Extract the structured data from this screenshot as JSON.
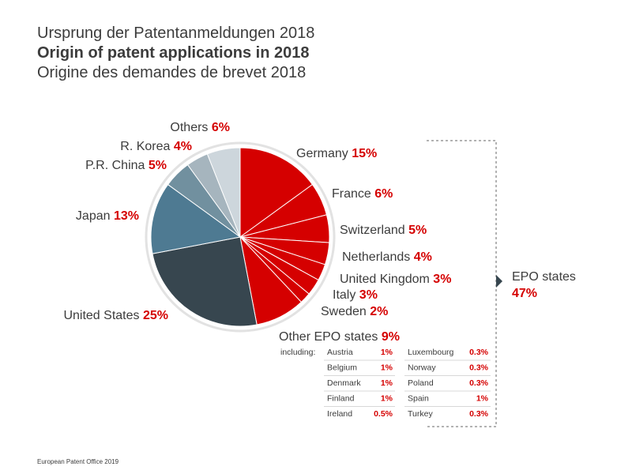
{
  "title_de": "Ursprung der Patentanmeldungen 2018",
  "title_en": "Origin of patent applications in 2018",
  "title_fr": "Origine des demandes de brevet 2018",
  "footer": "European Patent Office 2019",
  "chart_data": {
    "type": "pie",
    "categories": [
      "Germany",
      "France",
      "Switzerland",
      "Netherlands",
      "United Kingdom",
      "Italy",
      "Sweden",
      "Other EPO states",
      "United States",
      "Japan",
      "P.R. China",
      "R. Korea",
      "Others"
    ],
    "values": [
      15,
      6,
      5,
      4,
      3,
      3,
      2,
      9,
      25,
      13,
      5,
      4,
      6
    ],
    "value_labels": [
      "15%",
      "6%",
      "5%",
      "4%",
      "3%",
      "3%",
      "2%",
      "9%",
      "25%",
      "13%",
      "5%",
      "4%",
      "6%"
    ],
    "colors": [
      "#d50000",
      "#d50000",
      "#d50000",
      "#d50000",
      "#d50000",
      "#d50000",
      "#d50000",
      "#d50000",
      "#37464f",
      "#4e7a92",
      "#71909f",
      "#a6b5be",
      "#cdd6dc"
    ],
    "group": {
      "name": "EPO states",
      "value": 47,
      "value_label": "47%"
    },
    "breakdown": {
      "label": "including:",
      "names": [
        "Austria",
        "Belgium",
        "Denmark",
        "Finland",
        "Ireland",
        "Luxembourg",
        "Norway",
        "Poland",
        "Spain",
        "Turkey"
      ],
      "values": [
        1,
        1,
        1,
        1,
        0.5,
        0.3,
        0.3,
        0.3,
        1,
        0.3
      ],
      "value_labels": [
        "1%",
        "1%",
        "1%",
        "1%",
        "0.5%",
        "0.3%",
        "0.3%",
        "0.3%",
        "1%",
        "0.3%"
      ]
    }
  }
}
